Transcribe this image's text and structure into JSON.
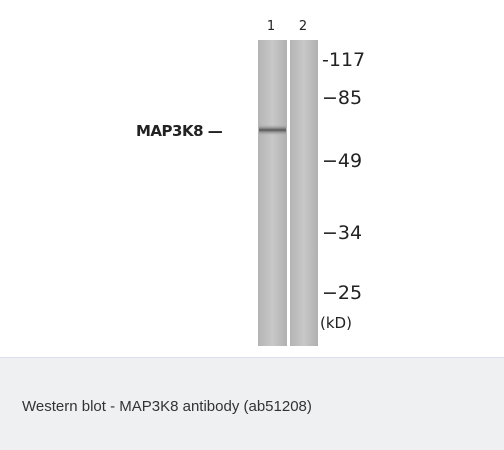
{
  "figure": {
    "lanes": [
      "1",
      "2"
    ],
    "band_label": "MAP3K8 —",
    "markers": [
      "-117",
      "−85",
      "−49",
      "−34",
      "−25"
    ],
    "unit": "(kD)"
  },
  "caption": "Western blot - MAP3K8 antibody (ab51208)"
}
